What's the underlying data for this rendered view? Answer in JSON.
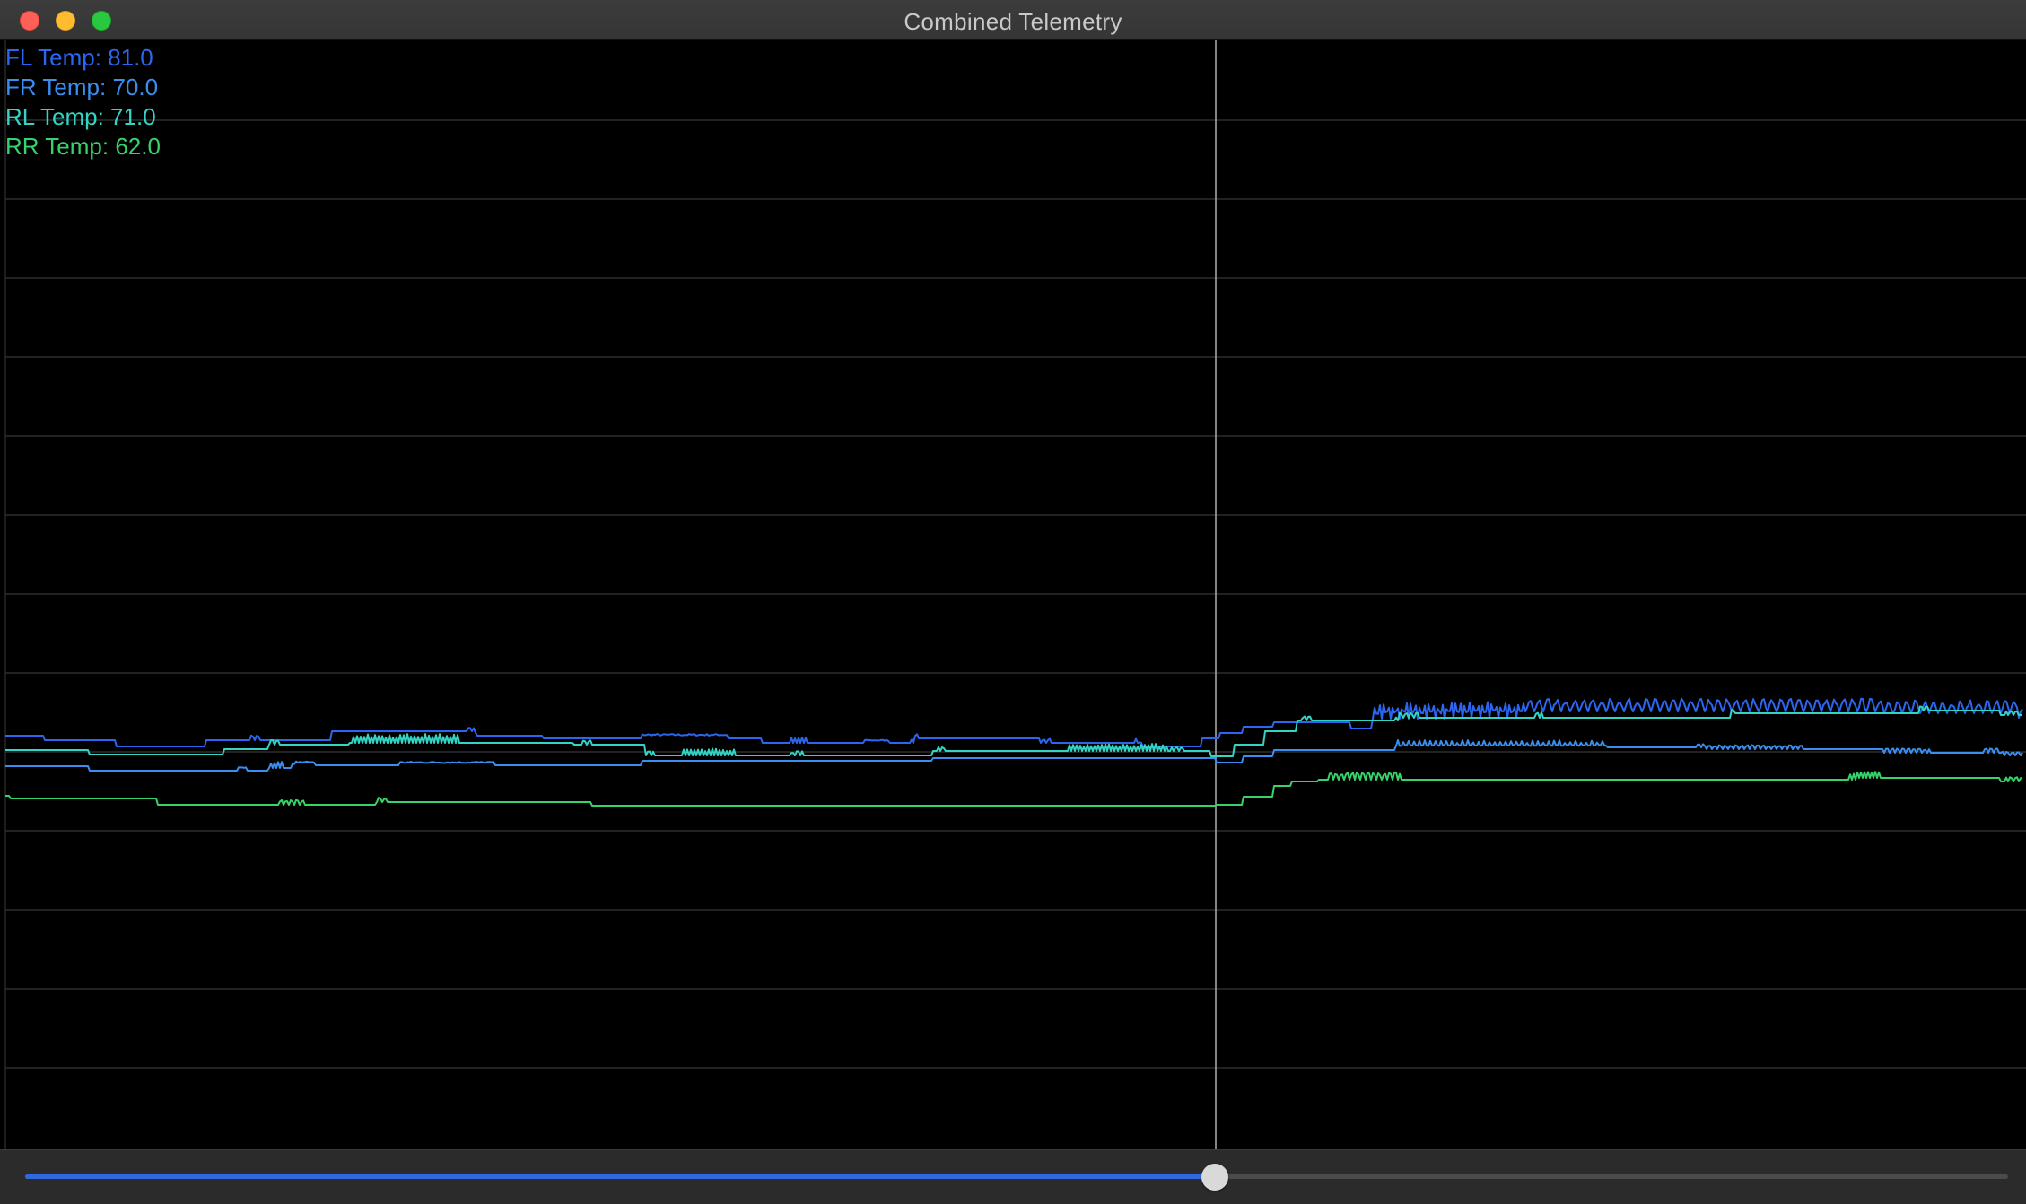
{
  "window": {
    "title": "Combined Telemetry"
  },
  "legend": [
    {
      "label": "FL Temp: 81.0",
      "color": "#2c66f0"
    },
    {
      "label": "FR Temp: 70.0",
      "color": "#3a8ef0"
    },
    {
      "label": "RL Temp: 71.0",
      "color": "#33d4c4"
    },
    {
      "label": "RR Temp: 62.0",
      "color": "#35d36a"
    }
  ],
  "timeline": {
    "position": 0.6
  },
  "colors": {
    "background": "#000000",
    "grid": "#2e2e2e",
    "cursor": "#b0b0b0",
    "slider_fill": "#2f68e0"
  }
}
